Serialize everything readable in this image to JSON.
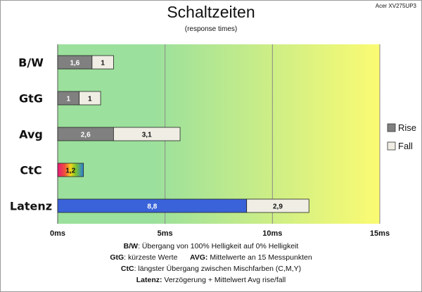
{
  "header": {
    "title": "Schaltzeiten",
    "subtitle": "(response times)",
    "model": "Acer XV275UP3"
  },
  "footer": {
    "line1_key": "B/W",
    "line1_text": ":  Übergang von 100% Helligkeit auf 0% Helligkeit",
    "line2_key_a": "GtG",
    "line2_text_a": ": kürzeste  Werte",
    "line2_key_b": "AVG:",
    "line2_text_b": " Mittelwerte  an 15 Messpunkten",
    "line3_key": "CtC",
    "line3_text": ": längster Übergang  zwischen Mischfarben  (C,M,Y)",
    "line4_key": "Latenz:",
    "line4_text": " Verzögerung  + Mittelwert Avg rise/fall"
  },
  "chart_data": {
    "type": "bar",
    "orientation": "horizontal",
    "stacked": true,
    "categories": [
      "B/W",
      "GtG",
      "Avg",
      "CtC",
      "Latenz"
    ],
    "series": [
      {
        "name": "Rise",
        "values": [
          1.6,
          1,
          2.6,
          1.2,
          8.8
        ],
        "labels": [
          "1,6",
          "1",
          "2,6",
          "1,2",
          "8,8"
        ]
      },
      {
        "name": "Fall",
        "values": [
          1,
          1,
          3.1,
          null,
          2.9
        ],
        "labels": [
          "1",
          "1",
          "3,1",
          "",
          "2,9"
        ]
      }
    ],
    "xlim": [
      0,
      15
    ],
    "x_ticks": [
      0,
      5,
      10,
      15
    ],
    "x_tick_labels": [
      "0ms",
      "5ms",
      "10ms",
      "15ms"
    ],
    "grid": "vertical",
    "background": "gradient green to yellow",
    "legend": "right",
    "colors": {
      "rise": "#808080",
      "fall": "#efede4",
      "latenz": "#3a62d9",
      "grad_green": "#9be09c",
      "grad_yellow": "#fbfb72",
      "grid": "#8a8a8a"
    },
    "special_fills": {
      "CtC": "rainbow",
      "Latenz": "blue"
    }
  }
}
